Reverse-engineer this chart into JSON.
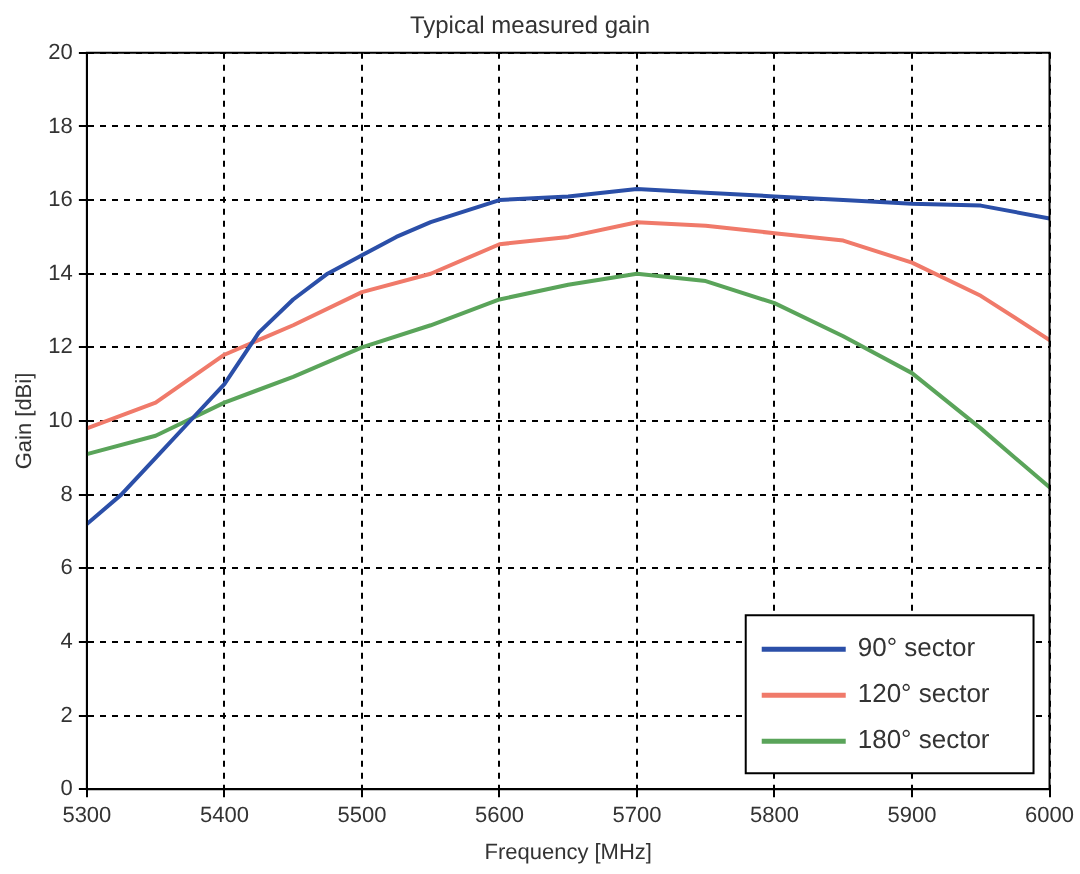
{
  "chart_data": {
    "type": "line",
    "title": "Typical measured gain",
    "xlabel": "Frequency [MHz]",
    "ylabel": "Gain [dBi]",
    "xlim": [
      5300,
      6000
    ],
    "xticks": [
      5300,
      5400,
      5500,
      5600,
      5700,
      5800,
      5900,
      6000
    ],
    "ylim": [
      0,
      20
    ],
    "yticks": [
      0,
      2,
      4,
      6,
      8,
      10,
      12,
      14,
      16,
      18,
      20
    ],
    "grid": true,
    "legend": "bottom right",
    "marker": "none",
    "line_style": "solid",
    "series": [
      {
        "name": "90° sector",
        "color": "#2b4fa8",
        "x": [
          5300,
          5325,
          5350,
          5375,
          5400,
          5425,
          5450,
          5475,
          5500,
          5525,
          5550,
          5575,
          5600,
          5650,
          5700,
          5750,
          5800,
          5850,
          5900,
          5950,
          6000
        ],
        "values": [
          7.2,
          8.0,
          9.0,
          10.0,
          11.0,
          12.4,
          13.3,
          14.0,
          14.5,
          15.0,
          15.4,
          15.7,
          16.0,
          16.1,
          16.3,
          16.2,
          16.1,
          16.0,
          15.9,
          15.85,
          15.5
        ]
      },
      {
        "name": "120° sector",
        "color": "#f07a6a",
        "x": [
          5300,
          5350,
          5400,
          5450,
          5500,
          5550,
          5600,
          5650,
          5700,
          5750,
          5800,
          5850,
          5900,
          5950,
          6000
        ],
        "values": [
          9.8,
          10.5,
          11.8,
          12.6,
          13.5,
          14.0,
          14.8,
          15.0,
          15.4,
          15.3,
          15.1,
          14.9,
          14.3,
          13.4,
          12.2
        ]
      },
      {
        "name": "180° sector",
        "color": "#5aa45a",
        "x": [
          5300,
          5350,
          5400,
          5450,
          5500,
          5550,
          5600,
          5650,
          5700,
          5750,
          5800,
          5850,
          5900,
          5950,
          6000
        ],
        "values": [
          9.1,
          9.6,
          10.5,
          11.2,
          12.0,
          12.6,
          13.3,
          13.7,
          14.0,
          13.8,
          13.2,
          12.3,
          11.3,
          9.8,
          8.2
        ]
      }
    ]
  }
}
